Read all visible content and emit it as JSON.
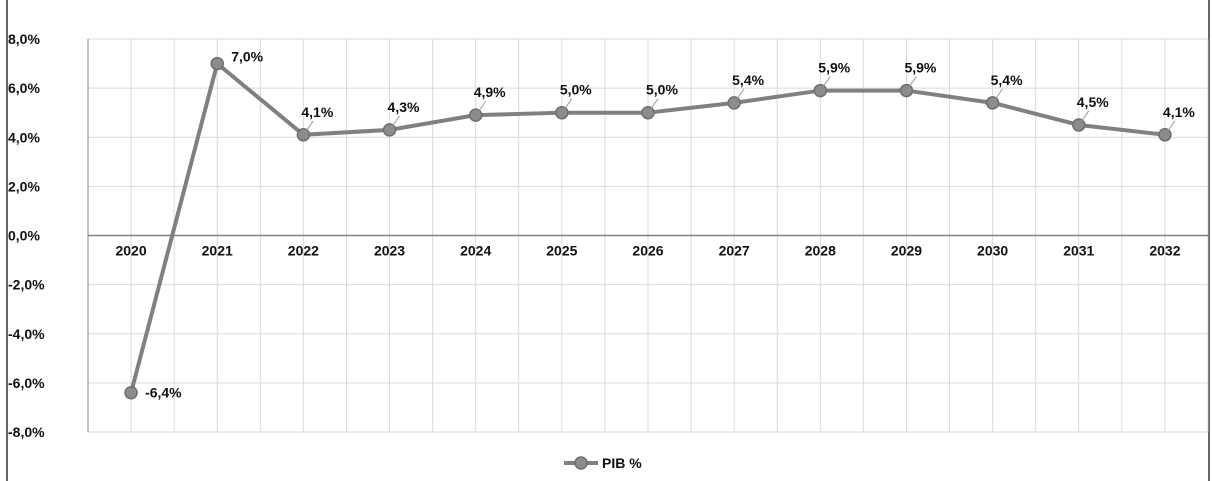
{
  "chart_data": {
    "type": "line",
    "title": "",
    "xlabel": "",
    "ylabel": "",
    "categories": [
      "2020",
      "2021",
      "2022",
      "2023",
      "2024",
      "2025",
      "2026",
      "2027",
      "2028",
      "2029",
      "2030",
      "2031",
      "2032"
    ],
    "series": [
      {
        "name": "PIB %",
        "values": [
          -6.4,
          7.0,
          4.1,
          4.3,
          4.9,
          5.0,
          5.0,
          5.4,
          5.9,
          5.9,
          5.4,
          4.5,
          4.1
        ],
        "data_labels": [
          "-6,4%",
          "7,0%",
          "4,1%",
          "4,3%",
          "4,9%",
          "5,0%",
          "5,0%",
          "5,4%",
          "5,9%",
          "5,9%",
          "5,4%",
          "4,5%",
          "4,1%"
        ],
        "color": "#808080"
      }
    ],
    "ylim": [
      -8,
      8
    ],
    "yticks": [
      "8,0%",
      "6,0%",
      "4,0%",
      "2,0%",
      "0,0%",
      "-2,0%",
      "-4,0%",
      "-6,0%",
      "-8,0%"
    ],
    "ytick_values": [
      8,
      6,
      4,
      2,
      0,
      -2,
      -4,
      -6,
      -8
    ],
    "grid": true,
    "legend_position": "bottom-center",
    "colors": {
      "line": "#808080",
      "marker": "#8c8c8c",
      "grid": "#d9d9d9",
      "axis": "#808080",
      "text": "#111111"
    }
  }
}
